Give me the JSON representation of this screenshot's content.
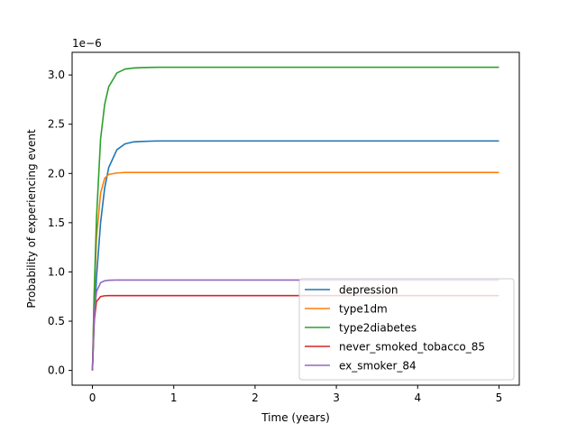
{
  "chart_data": {
    "type": "line",
    "title": "",
    "xlabel": "Time (years)",
    "ylabel": "Probability of experiencing event",
    "y_offset_label": "1e−6",
    "xlim": [
      -0.25,
      5.25
    ],
    "ylim": [
      -0.15,
      3.23
    ],
    "x_ticks": [
      0,
      1,
      2,
      3,
      4,
      5
    ],
    "x_tick_labels": [
      "0",
      "1",
      "2",
      "3",
      "4",
      "5"
    ],
    "y_ticks": [
      0.0,
      0.5,
      1.0,
      1.5,
      2.0,
      2.5,
      3.0
    ],
    "y_tick_labels": [
      "0.0",
      "0.5",
      "1.0",
      "1.5",
      "2.0",
      "2.5",
      "3.0"
    ],
    "y_unit_multiplier": 1e-06,
    "grid": false,
    "legend_placement": "lower-right",
    "x": [
      0,
      0.02,
      0.05,
      0.1,
      0.15,
      0.2,
      0.3,
      0.4,
      0.5,
      0.6,
      0.8,
      1.0,
      1.5,
      2.0,
      3.0,
      4.0,
      5.0
    ],
    "series": [
      {
        "name": "depression",
        "color": "#1f77b4",
        "values": [
          0.0,
          0.45,
          0.95,
          1.5,
          1.85,
          2.06,
          2.24,
          2.3,
          2.32,
          2.325,
          2.33,
          2.33,
          2.33,
          2.33,
          2.33,
          2.33,
          2.33
        ]
      },
      {
        "name": "type1dm",
        "color": "#ff7f0e",
        "values": [
          0.0,
          0.7,
          1.35,
          1.8,
          1.95,
          1.99,
          2.005,
          2.01,
          2.01,
          2.01,
          2.01,
          2.01,
          2.01,
          2.01,
          2.01,
          2.01,
          2.01
        ]
      },
      {
        "name": "type2diabetes",
        "color": "#2ca02c",
        "values": [
          0.0,
          0.75,
          1.55,
          2.35,
          2.7,
          2.88,
          3.02,
          3.06,
          3.07,
          3.075,
          3.078,
          3.078,
          3.078,
          3.078,
          3.078,
          3.078,
          3.078
        ]
      },
      {
        "name": "never_smoked_tobacco_85",
        "color": "#d62728",
        "values": [
          0.0,
          0.5,
          0.7,
          0.75,
          0.758,
          0.76,
          0.76,
          0.76,
          0.76,
          0.76,
          0.76,
          0.76,
          0.76,
          0.76,
          0.76,
          0.76,
          0.76
        ]
      },
      {
        "name": "ex_smoker_84",
        "color": "#9467bd",
        "values": [
          0.0,
          0.55,
          0.8,
          0.89,
          0.91,
          0.915,
          0.918,
          0.918,
          0.918,
          0.918,
          0.918,
          0.918,
          0.918,
          0.918,
          0.918,
          0.918,
          0.918
        ]
      }
    ]
  }
}
